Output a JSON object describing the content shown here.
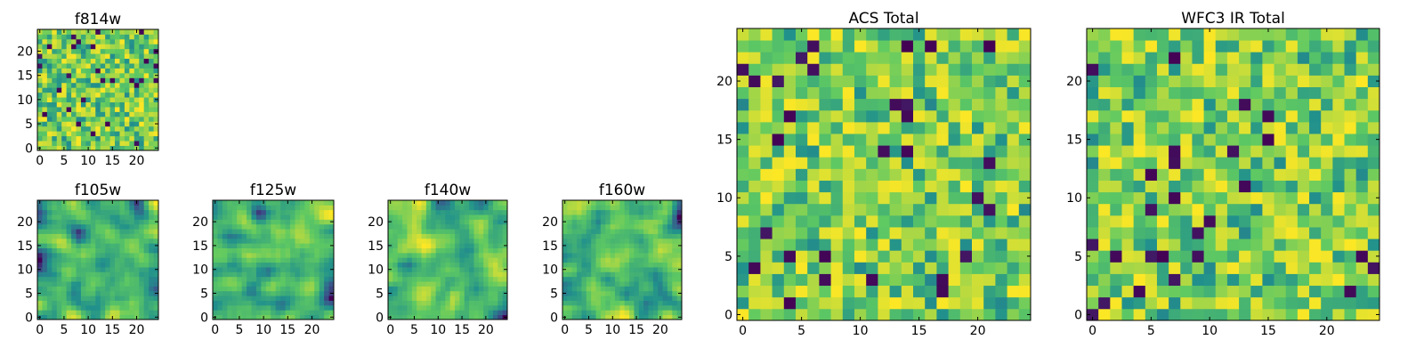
{
  "figure": {
    "colormap": "viridis",
    "colors": [
      "#440154",
      "#3b528b",
      "#21918c",
      "#5ec962",
      "#fde725"
    ]
  },
  "chart_data": [
    {
      "type": "heatmap",
      "title": "f814w",
      "grid": [
        25,
        25
      ],
      "xticks": [
        "0",
        "5",
        "10",
        "15",
        "20"
      ],
      "yticks": [
        "0",
        "5",
        "10",
        "15",
        "20"
      ],
      "xlim": [
        0,
        25
      ],
      "ylim": [
        0,
        25
      ],
      "values": "25x25 noisy intensity field, mostly green/yellow with scattered dark pixels"
    },
    {
      "type": "heatmap",
      "title": "f105w",
      "grid": [
        25,
        25
      ],
      "xticks": [
        "0",
        "5",
        "10",
        "15",
        "20"
      ],
      "yticks": [
        "0",
        "5",
        "10",
        "15",
        "20"
      ],
      "xlim": [
        0,
        25
      ],
      "ylim": [
        0,
        25
      ],
      "values": "25x25 smooth blotchy field, green/yellow with dark blue spots"
    },
    {
      "type": "heatmap",
      "title": "f125w",
      "grid": [
        25,
        25
      ],
      "xticks": [
        "0",
        "5",
        "10",
        "15",
        "20"
      ],
      "yticks": [
        "0",
        "5",
        "10",
        "15",
        "20"
      ],
      "xlim": [
        0,
        25
      ],
      "ylim": [
        0,
        25
      ],
      "values": "25x25 smooth blotchy field, green/yellow with dark blue spots"
    },
    {
      "type": "heatmap",
      "title": "f140w",
      "grid": [
        25,
        25
      ],
      "xticks": [
        "0",
        "5",
        "10",
        "15",
        "20"
      ],
      "yticks": [
        "0",
        "5",
        "10",
        "15",
        "20"
      ],
      "xlim": [
        0,
        25
      ],
      "ylim": [
        0,
        25
      ],
      "values": "25x25 smooth blotchy field, green/yellow with dark blue spots"
    },
    {
      "type": "heatmap",
      "title": "f160w",
      "grid": [
        25,
        25
      ],
      "xticks": [
        "0",
        "5",
        "10",
        "15",
        "20"
      ],
      "yticks": [
        "0",
        "5",
        "10",
        "15",
        "20"
      ],
      "xlim": [
        0,
        25
      ],
      "ylim": [
        0,
        25
      ],
      "values": "25x25 smooth blotchy field, green/yellow with dark blue spots"
    },
    {
      "type": "heatmap",
      "title": "ACS Total",
      "grid": [
        25,
        25
      ],
      "xticks": [
        "0",
        "5",
        "10",
        "15",
        "20"
      ],
      "yticks": [
        "0",
        "5",
        "10",
        "15",
        "20"
      ],
      "xlim": [
        0,
        25
      ],
      "ylim": [
        0,
        25
      ],
      "values": "25x25 noisy intensity field, mostly green/yellow with scattered dark pixels"
    },
    {
      "type": "heatmap",
      "title": "WFC3 IR Total",
      "grid": [
        25,
        25
      ],
      "xticks": [
        "0",
        "5",
        "10",
        "15",
        "20"
      ],
      "yticks": [
        "0",
        "5",
        "10",
        "15",
        "20"
      ],
      "xlim": [
        0,
        25
      ],
      "ylim": [
        0,
        25
      ],
      "values": "25x25 noisy intensity field, mostly green/yellow with scattered dark pixels"
    }
  ]
}
